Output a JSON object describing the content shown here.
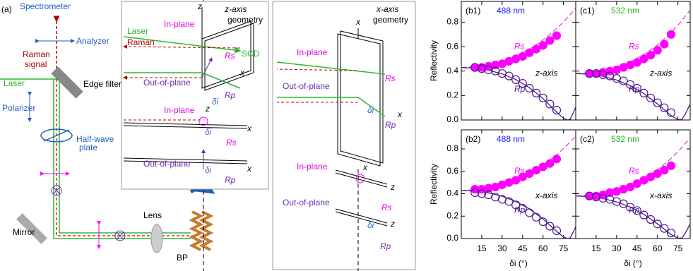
{
  "figure": {
    "labels": [
      "(a)",
      "Spectrometer",
      "Analyzer",
      "Raman",
      "signal",
      "Edge filter",
      "Laser",
      "Polarizer",
      "Half-wave",
      "plate",
      "Lens",
      "Mirror",
      "BP",
      "z-axis",
      "geometry",
      "In-plane",
      "Laser",
      "Raman",
      "SCD",
      "Rs",
      "Out-of-plane",
      "δi",
      "Rp",
      "x",
      "z",
      "z",
      "In-plane",
      "x",
      "δi",
      "Rs",
      "Out-of-plane",
      "δi",
      "x",
      "Rp",
      "x-axis",
      "geometry",
      "x",
      "In-plane",
      "Rs",
      "Out-of-plane",
      "δi",
      "x",
      "Rp",
      "In-plane",
      "x",
      "z",
      "Rs",
      "Out-of-plane",
      "z",
      "δi",
      "Rp"
    ]
  },
  "chart_data": [
    {
      "type": "scatter",
      "panel": "(b1)",
      "wavelength": "488 nm",
      "wavelength_color": "#1a1aff",
      "geometry": "z-axis",
      "ylabel": "Reflectivity",
      "xlim": [
        0,
        84
      ],
      "ylim": [
        0,
        0.97
      ],
      "xticks": [
        15,
        30,
        45,
        60,
        75
      ],
      "show_xtick_labels": false,
      "yticks": [
        {
          "value": 0,
          "label": "0.0"
        },
        {
          "value": 0.2,
          "label": "0.2"
        },
        {
          "value": 0.4,
          "label": "0.4"
        },
        {
          "value": 0.6,
          "label": "0.6"
        },
        {
          "value": 0.8,
          "label": "0.8"
        }
      ],
      "x": [
        10,
        15,
        20,
        25,
        30,
        35,
        40,
        45,
        50,
        55,
        60,
        65,
        70
      ],
      "series": [
        {
          "name": "Rs",
          "color": "#ff00ff",
          "filled": true,
          "values": [
            0.43,
            0.43,
            0.44,
            0.45,
            0.46,
            0.48,
            0.5,
            0.52,
            0.55,
            0.58,
            0.61,
            0.65,
            0.69
          ]
        },
        {
          "name": "Rp",
          "color": "#4b1a8c",
          "filled": false,
          "values": [
            0.43,
            0.42,
            0.41,
            0.4,
            0.38,
            0.36,
            0.33,
            0.3,
            0.26,
            0.22,
            0.18,
            0.13,
            0.08
          ]
        }
      ],
      "line_x": [
        0,
        10,
        20,
        30,
        40,
        50,
        60,
        70,
        75,
        78,
        80,
        84
      ],
      "lines": [
        {
          "color": "#e040e0",
          "dashed": true,
          "values": [
            0.429,
            0.435,
            0.451,
            0.48,
            0.522,
            0.579,
            0.654,
            0.748,
            0.802,
            0.839,
            0.862,
            0.914
          ]
        },
        {
          "color": "#4b1a8c",
          "dashed": false,
          "values": [
            0.429,
            0.424,
            0.407,
            0.377,
            0.331,
            0.265,
            0.175,
            0.064,
            0.014,
            0,
            0.007,
            0.103
          ]
        }
      ]
    },
    {
      "type": "scatter",
      "panel": "(c1)",
      "wavelength": "532 nm",
      "wavelength_color": "#1fb51f",
      "geometry": "z-axis",
      "xlim": [
        0,
        84
      ],
      "ylim": [
        0,
        0.97
      ],
      "xticks": [
        15,
        30,
        45,
        60,
        75
      ],
      "show_xtick_labels": false,
      "yticks": [
        0,
        0.2,
        0.4,
        0.6,
        0.8
      ],
      "x": [
        10,
        15,
        20,
        25,
        30,
        35,
        40,
        45,
        50,
        55,
        60,
        65,
        70
      ],
      "series": [
        {
          "name": "Rs",
          "color": "#ff00ff",
          "filled": true,
          "values": [
            0.38,
            0.38,
            0.39,
            0.4,
            0.41,
            0.43,
            0.45,
            0.47,
            0.5,
            0.53,
            0.57,
            0.62,
            0.7
          ]
        },
        {
          "name": "Rp",
          "color": "#4b1a8c",
          "filled": false,
          "values": [
            0.38,
            0.38,
            0.37,
            0.36,
            0.34,
            0.32,
            0.29,
            0.26,
            0.22,
            0.18,
            0.14,
            0.1,
            0.06
          ]
        }
      ],
      "line_x": [
        0,
        10,
        20,
        30,
        40,
        50,
        60,
        70,
        75,
        78,
        80,
        84
      ],
      "lines": [
        {
          "color": "#e040e0",
          "dashed": true,
          "values": [
            0.38,
            0.386,
            0.403,
            0.433,
            0.476,
            0.535,
            0.613,
            0.714,
            0.775,
            0.815,
            0.843,
            0.9
          ]
        },
        {
          "color": "#4b1a8c",
          "dashed": false,
          "values": [
            0.38,
            0.374,
            0.357,
            0.327,
            0.281,
            0.216,
            0.131,
            0.036,
            0.003,
            0.005,
            0.04,
            0.13
          ]
        }
      ]
    },
    {
      "type": "scatter",
      "panel": "(b2)",
      "wavelength": "488 nm",
      "wavelength_color": "#1a1aff",
      "geometry": "x-axis",
      "ylabel": "Reflectivity",
      "xlabel": "δi (°)",
      "xlim": [
        0,
        84
      ],
      "ylim": [
        0,
        0.97
      ],
      "xticks": [
        15,
        30,
        45,
        60,
        75
      ],
      "show_xtick_labels": true,
      "yticks": [
        {
          "value": 0,
          "label": "0.0"
        },
        {
          "value": 0.2,
          "label": "0.2"
        },
        {
          "value": 0.4,
          "label": "0.4"
        },
        {
          "value": 0.6,
          "label": "0.6"
        },
        {
          "value": 0.8,
          "label": "0.8"
        }
      ],
      "x": [
        10,
        15,
        20,
        25,
        30,
        35,
        40,
        45,
        50,
        55,
        60,
        65,
        70
      ],
      "series": [
        {
          "name": "Rs",
          "color": "#ff00ff",
          "filled": true,
          "values": [
            0.44,
            0.44,
            0.45,
            0.46,
            0.48,
            0.5,
            0.52,
            0.55,
            0.58,
            0.61,
            0.64,
            0.67,
            0.71
          ]
        },
        {
          "name": "Rp",
          "color": "#4b1a8c",
          "filled": false,
          "values": [
            0.41,
            0.4,
            0.39,
            0.37,
            0.35,
            0.33,
            0.3,
            0.27,
            0.23,
            0.19,
            0.15,
            0.11,
            0.07
          ]
        }
      ],
      "line_x": [
        0,
        10,
        20,
        30,
        40,
        50,
        60,
        70,
        75,
        78,
        80,
        84
      ],
      "lines": [
        {
          "color": "#e040e0",
          "dashed": true,
          "values": [
            0.429,
            0.435,
            0.451,
            0.48,
            0.522,
            0.579,
            0.654,
            0.748,
            0.802,
            0.839,
            0.862,
            0.914
          ]
        },
        {
          "color": "#4b1a8c",
          "dashed": false,
          "values": [
            0.429,
            0.424,
            0.407,
            0.377,
            0.331,
            0.265,
            0.175,
            0.064,
            0.014,
            0,
            0.007,
            0.103
          ]
        }
      ]
    },
    {
      "type": "scatter",
      "panel": "(c2)",
      "wavelength": "532 nm",
      "wavelength_color": "#1fb51f",
      "geometry": "x-axis",
      "xlabel": "δi (°)",
      "xlim": [
        0,
        84
      ],
      "ylim": [
        0,
        0.97
      ],
      "xticks": [
        15,
        30,
        45,
        60,
        75
      ],
      "show_xtick_labels": true,
      "yticks": [
        0,
        0.2,
        0.4,
        0.6,
        0.8
      ],
      "x": [
        10,
        15,
        20,
        25,
        30,
        35,
        40,
        45,
        50,
        55,
        60,
        65,
        70
      ],
      "series": [
        {
          "name": "Rs",
          "color": "#ff00ff",
          "filled": true,
          "values": [
            0.38,
            0.38,
            0.39,
            0.41,
            0.42,
            0.44,
            0.46,
            0.49,
            0.52,
            0.55,
            0.58,
            0.61,
            0.65
          ]
        },
        {
          "name": "Rp",
          "color": "#4b1a8c",
          "filled": false,
          "values": [
            0.38,
            0.37,
            0.36,
            0.35,
            0.33,
            0.31,
            0.28,
            0.25,
            0.21,
            0.17,
            0.13,
            0.09,
            0.05
          ]
        }
      ],
      "line_x": [
        0,
        10,
        20,
        30,
        40,
        50,
        60,
        70,
        75,
        78,
        80,
        84
      ],
      "lines": [
        {
          "color": "#e040e0",
          "dashed": true,
          "values": [
            0.38,
            0.386,
            0.403,
            0.433,
            0.476,
            0.535,
            0.613,
            0.714,
            0.775,
            0.815,
            0.843,
            0.9
          ]
        },
        {
          "color": "#4b1a8c",
          "dashed": false,
          "values": [
            0.38,
            0.374,
            0.357,
            0.327,
            0.281,
            0.216,
            0.131,
            0.036,
            0.003,
            0.005,
            0.04,
            0.13
          ]
        }
      ]
    }
  ]
}
